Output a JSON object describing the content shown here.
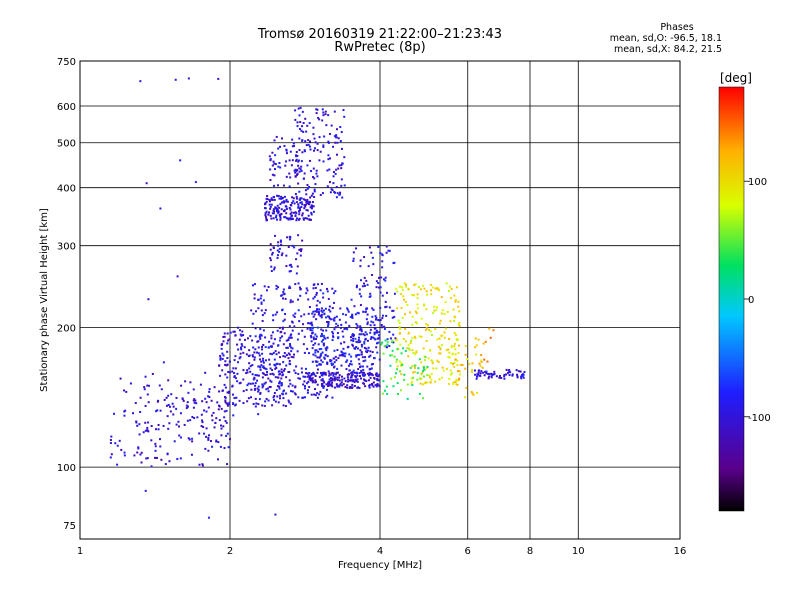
{
  "header": {
    "title_line1": "Tromsø 20160319 21:22:00–21:23:43",
    "title_line2": "RwPretec (8p)"
  },
  "phases": {
    "title": "Phases",
    "mean_o": "mean, sd,O: -96.5, 18.1",
    "mean_x": "mean, sd,X: 84.2, 21.5"
  },
  "chart_data": {
    "type": "scatter",
    "xlabel": "Frequency [MHz]",
    "ylabel": "Stationary phase Virtual Height [km]",
    "x_scale": "log",
    "y_scale": "log",
    "xlim": [
      1,
      16
    ],
    "ylim": [
      70,
      750
    ],
    "x_ticks": [
      1,
      2,
      4,
      6,
      8,
      10,
      16
    ],
    "y_ticks": [
      75,
      100,
      200,
      300,
      400,
      500,
      600,
      750
    ],
    "x_gridlines": [
      2,
      4,
      6,
      8,
      10
    ],
    "y_gridlines": [
      100,
      200,
      300,
      400,
      500,
      600
    ],
    "grid": true,
    "colorbar": {
      "label": "[deg]",
      "range": [
        -180,
        180
      ],
      "ticks": [
        100,
        0,
        -100
      ],
      "colors": [
        "#000000",
        "#5a008c",
        "#1e1eff",
        "#00c8ff",
        "#00e060",
        "#d8ff00",
        "#ffb000",
        "#ff0000"
      ]
    },
    "series": [
      {
        "clusters": [
          {
            "x": [
              1.15,
              2.0
            ],
            "y": [
              100,
              160
            ],
            "phase": -105,
            "n": 150
          },
          {
            "x": [
              1.35,
              2.05
            ],
            "y": [
              110,
              145
            ],
            "phase": -100,
            "n": 60
          },
          {
            "x": [
              1.9,
              2.7
            ],
            "y": [
              135,
              200
            ],
            "phase": -100,
            "n": 260
          },
          {
            "x": [
              2.2,
              3.3
            ],
            "y": [
              140,
              250
            ],
            "phase": -95,
            "n": 300
          },
          {
            "x": [
              2.8,
              4.0
            ],
            "y": [
              148,
              160
            ],
            "phase": -105,
            "n": 200
          },
          {
            "x": [
              2.9,
              4.0
            ],
            "y": [
              160,
              220
            ],
            "phase": -90,
            "n": 240
          },
          {
            "x": [
              3.5,
              4.3
            ],
            "y": [
              180,
              300
            ],
            "phase": -95,
            "n": 120
          },
          {
            "x": [
              2.35,
              2.95
            ],
            "y": [
              340,
              385
            ],
            "phase": -100,
            "n": 180
          },
          {
            "x": [
              2.7,
              3.4
            ],
            "y": [
              380,
              600
            ],
            "phase": -100,
            "n": 150
          },
          {
            "x": [
              2.4,
              2.8
            ],
            "y": [
              400,
              520
            ],
            "phase": -100,
            "n": 60
          },
          {
            "x": [
              2.4,
              2.8
            ],
            "y": [
              260,
              320
            ],
            "phase": -100,
            "n": 50
          },
          {
            "x": [
              6.2,
              7.8
            ],
            "y": [
              155,
              162
            ],
            "phase": -100,
            "n": 60
          },
          {
            "x": [
              1.3,
              2.5
            ],
            "y": [
              70,
              750
            ],
            "phase": -100,
            "n": 18
          }
        ]
      },
      {
        "clusters": [
          {
            "x": [
              4.3,
              5.8
            ],
            "y": [
              150,
              250
            ],
            "phase": 95,
            "n": 220
          },
          {
            "x": [
              4.0,
              5.0
            ],
            "y": [
              140,
              190
            ],
            "phase": 40,
            "n": 60
          },
          {
            "x": [
              5.4,
              6.4
            ],
            "y": [
              140,
              190
            ],
            "phase": 110,
            "n": 40
          },
          {
            "x": [
              6.3,
              6.8
            ],
            "y": [
              160,
              220
            ],
            "phase": 130,
            "n": 10
          }
        ]
      }
    ]
  }
}
